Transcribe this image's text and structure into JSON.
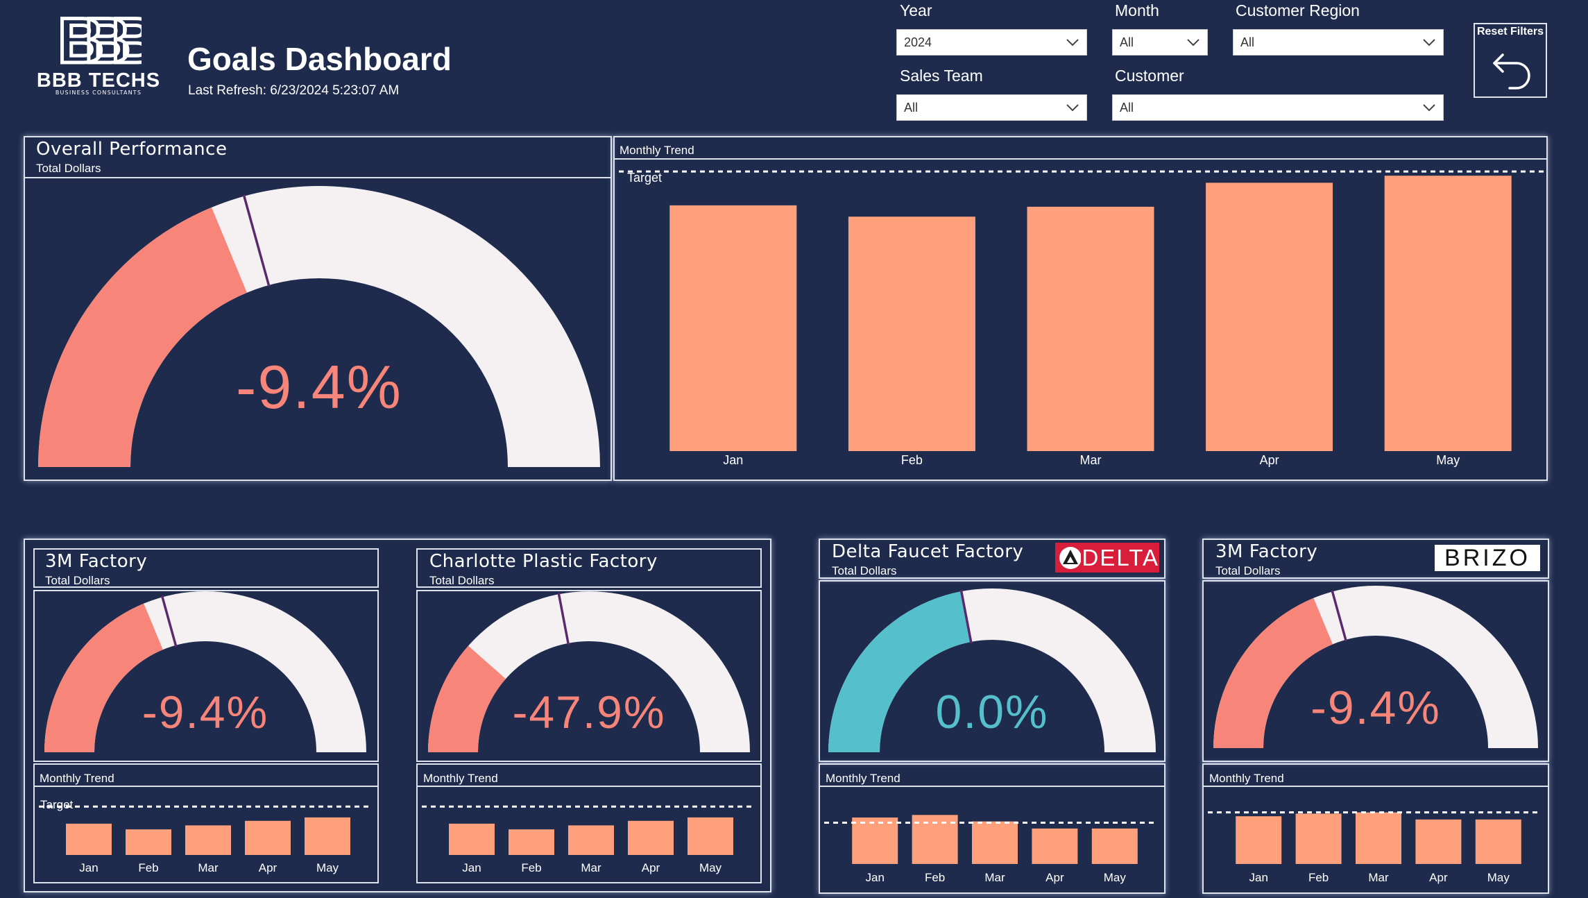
{
  "header": {
    "logo_monogram": "BBB",
    "logo_name": "BBB TECHS",
    "logo_tagline": "BUSINESS CONSULTANTS",
    "title": "Goals Dashboard",
    "last_refresh": "Last Refresh: 6/23/2024 5:23:07 AM"
  },
  "filters": {
    "year": {
      "label": "Year",
      "value": "2024"
    },
    "month": {
      "label": "Month",
      "value": "All"
    },
    "customer_region": {
      "label": "Customer Region",
      "value": "All"
    },
    "sales_team": {
      "label": "Sales Team",
      "value": "All"
    },
    "customer": {
      "label": "Customer",
      "value": "All"
    },
    "reset_label": "Reset Filters"
  },
  "colors": {
    "background": "#1e2b4d",
    "negative": "#f8857a",
    "neutral": "#55c0cc",
    "bar": "#fda07b",
    "gauge_track": "#f5f1f2",
    "target_line": "#5b2a6e",
    "delta_red": "#d81e3a"
  },
  "overall": {
    "title": "Overall Performance",
    "subtitle": "Total Dollars",
    "gauge": {
      "value": 0.375,
      "target": 0.414,
      "label": "-9.4%"
    },
    "trend": {
      "title": "Monthly Trend",
      "target_label": "Target",
      "categories": [
        "Jan",
        "Feb",
        "Mar",
        "Apr",
        "May"
      ],
      "values": [
        0.87,
        0.83,
        0.865,
        0.95,
        0.975
      ],
      "target": 0.99
    }
  },
  "factories": [
    {
      "title": "3M Factory",
      "subtitle": "Total Dollars",
      "logo": "",
      "gauge": {
        "value": 0.375,
        "target": 0.414,
        "label": "-9.4%"
      },
      "trend": {
        "title": "Monthly Trend",
        "target_label": "Target",
        "categories": [
          "Jan",
          "Feb",
          "Mar",
          "Apr",
          "May"
        ],
        "values": [
          0.55,
          0.45,
          0.52,
          0.6,
          0.66
        ],
        "target": 0.85
      }
    },
    {
      "title": "Charlotte Plastic Factory",
      "subtitle": "Total Dollars",
      "logo": "",
      "gauge": {
        "value": 0.23,
        "target": 0.44,
        "label": "-47.9%"
      },
      "trend": {
        "title": "Monthly Trend",
        "target_label": "",
        "categories": [
          "Jan",
          "Feb",
          "Mar",
          "Apr",
          "May"
        ],
        "values": [
          0.55,
          0.45,
          0.52,
          0.6,
          0.66
        ],
        "target": 0.85
      }
    },
    {
      "title": "Delta Faucet Factory",
      "subtitle": "Total Dollars",
      "logo": "DELTA",
      "gauge": {
        "value": 0.44,
        "target": 0.44,
        "label": "0.0%"
      },
      "trend": {
        "title": "Monthly Trend",
        "target_label": "",
        "categories": [
          "Jan",
          "Feb",
          "Mar",
          "Apr",
          "May"
        ],
        "values": [
          0.72,
          0.76,
          0.66,
          0.55,
          0.55
        ],
        "target": 0.64
      }
    },
    {
      "title": "3M Factory",
      "subtitle": "Total Dollars",
      "logo": "BRIZO",
      "gauge": {
        "value": 0.375,
        "target": 0.414,
        "label": "-9.4%"
      },
      "trend": {
        "title": "Monthly Trend",
        "target_label": "",
        "categories": [
          "Jan",
          "Feb",
          "Mar",
          "Apr",
          "May"
        ],
        "values": [
          0.74,
          0.78,
          0.8,
          0.69,
          0.69
        ],
        "target": 0.8
      }
    }
  ]
}
